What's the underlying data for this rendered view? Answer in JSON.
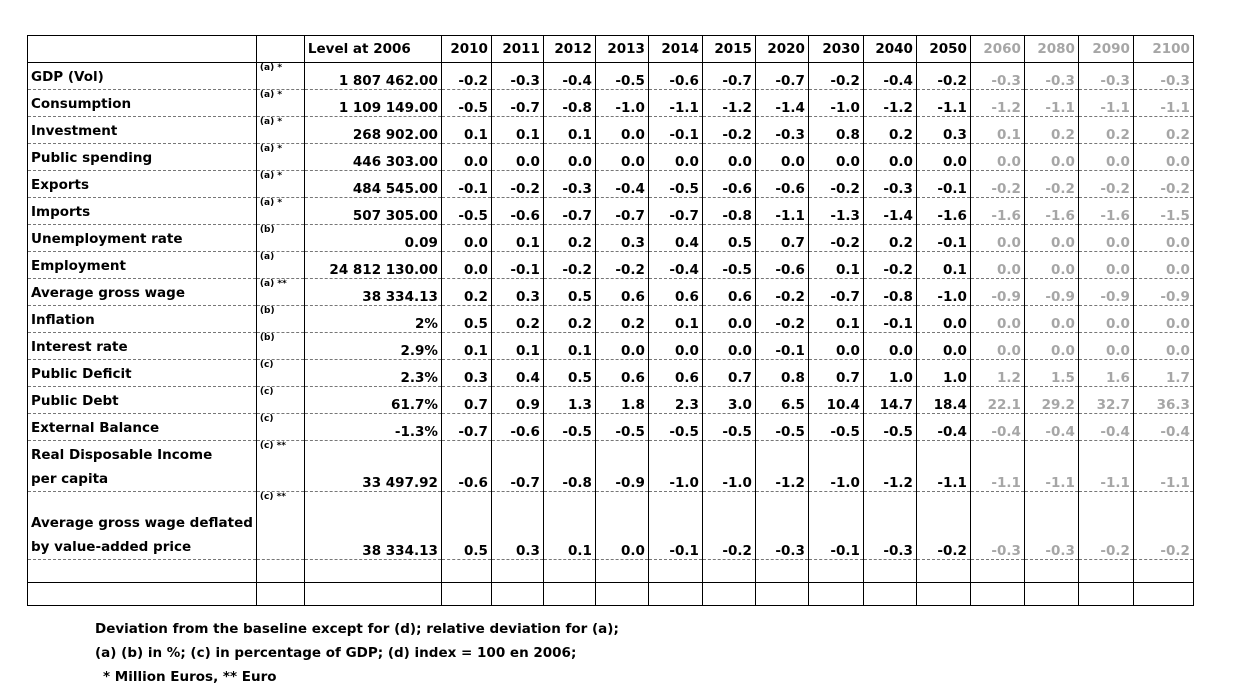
{
  "header": {
    "level_label": "Level at 2006",
    "years": [
      "2010",
      "2011",
      "2012",
      "2013",
      "2014",
      "2015",
      "2020",
      "2030",
      "2040",
      "2050",
      "2060",
      "2080",
      "2090",
      "2100"
    ],
    "grey_from_index": 10
  },
  "rows": [
    {
      "label": "GDP (Vol)",
      "note": "(a) *",
      "level": "1 807 462.00",
      "values": [
        "-0.2",
        "-0.3",
        "-0.4",
        "-0.5",
        "-0.6",
        "-0.7",
        "-0.7",
        "-0.2",
        "-0.4",
        "-0.2",
        "-0.3",
        "-0.3",
        "-0.3",
        "-0.3"
      ]
    },
    {
      "label": "Consumption",
      "note": "(a) *",
      "level": "1 109 149.00",
      "values": [
        "-0.5",
        "-0.7",
        "-0.8",
        "-1.0",
        "-1.1",
        "-1.2",
        "-1.4",
        "-1.0",
        "-1.2",
        "-1.1",
        "-1.2",
        "-1.1",
        "-1.1",
        "-1.1"
      ]
    },
    {
      "label": "Investment",
      "note": "(a) *",
      "level": "268 902.00",
      "values": [
        "0.1",
        "0.1",
        "0.1",
        "0.0",
        "-0.1",
        "-0.2",
        "-0.3",
        "0.8",
        "0.2",
        "0.3",
        "0.1",
        "0.2",
        "0.2",
        "0.2"
      ]
    },
    {
      "label": "Public spending",
      "note": "(a) *",
      "level": "446 303.00",
      "values": [
        "0.0",
        "0.0",
        "0.0",
        "0.0",
        "0.0",
        "0.0",
        "0.0",
        "0.0",
        "0.0",
        "0.0",
        "0.0",
        "0.0",
        "0.0",
        "0.0"
      ]
    },
    {
      "label": "Exports",
      "note": "(a) *",
      "level": "484 545.00",
      "values": [
        "-0.1",
        "-0.2",
        "-0.3",
        "-0.4",
        "-0.5",
        "-0.6",
        "-0.6",
        "-0.2",
        "-0.3",
        "-0.1",
        "-0.2",
        "-0.2",
        "-0.2",
        "-0.2"
      ]
    },
    {
      "label": "Imports",
      "note": "(a) *",
      "level": "507 305.00",
      "values": [
        "-0.5",
        "-0.6",
        "-0.7",
        "-0.7",
        "-0.7",
        "-0.8",
        "-1.1",
        "-1.3",
        "-1.4",
        "-1.6",
        "-1.6",
        "-1.6",
        "-1.6",
        "-1.5"
      ]
    },
    {
      "label": "Unemployment rate",
      "note": "(b)",
      "level": "0.09",
      "values": [
        "0.0",
        "0.1",
        "0.2",
        "0.3",
        "0.4",
        "0.5",
        "0.7",
        "-0.2",
        "0.2",
        "-0.1",
        "0.0",
        "0.0",
        "0.0",
        "0.0"
      ]
    },
    {
      "label": "Employment",
      "note": "(a)",
      "level": "24 812 130.00",
      "values": [
        "0.0",
        "-0.1",
        "-0.2",
        "-0.2",
        "-0.4",
        "-0.5",
        "-0.6",
        "0.1",
        "-0.2",
        "0.1",
        "0.0",
        "0.0",
        "0.0",
        "0.0"
      ]
    },
    {
      "label": "Average gross wage",
      "note": "(a) **",
      "level": "38 334.13",
      "values": [
        "0.2",
        "0.3",
        "0.5",
        "0.6",
        "0.6",
        "0.6",
        "-0.2",
        "-0.7",
        "-0.8",
        "-1.0",
        "-0.9",
        "-0.9",
        "-0.9",
        "-0.9"
      ]
    },
    {
      "label": "Inflation",
      "note": "(b)",
      "level": "2%",
      "values": [
        "0.5",
        "0.2",
        "0.2",
        "0.2",
        "0.1",
        "0.0",
        "-0.2",
        "0.1",
        "-0.1",
        "0.0",
        "0.0",
        "0.0",
        "0.0",
        "0.0"
      ]
    },
    {
      "label": "Interest rate",
      "note": "(b)",
      "level": "2.9%",
      "values": [
        "0.1",
        "0.1",
        "0.1",
        "0.0",
        "0.0",
        "0.0",
        "-0.1",
        "0.0",
        "0.0",
        "0.0",
        "0.0",
        "0.0",
        "0.0",
        "0.0"
      ]
    },
    {
      "label": "Public Deficit",
      "note": "(c)",
      "level": "2.3%",
      "values": [
        "0.3",
        "0.4",
        "0.5",
        "0.6",
        "0.6",
        "0.7",
        "0.8",
        "0.7",
        "1.0",
        "1.0",
        "1.2",
        "1.5",
        "1.6",
        "1.7"
      ]
    },
    {
      "label": "Public Debt",
      "note": "(c)",
      "level": "61.7%",
      "values": [
        "0.7",
        "0.9",
        "1.3",
        "1.8",
        "2.3",
        "3.0",
        "6.5",
        "10.4",
        "14.7",
        "18.4",
        "22.1",
        "29.2",
        "32.7",
        "36.3"
      ]
    },
    {
      "label": "External Balance",
      "note": "(c)",
      "level": "-1.3%",
      "values": [
        "-0.7",
        "-0.6",
        "-0.5",
        "-0.5",
        "-0.5",
        "-0.5",
        "-0.5",
        "-0.5",
        "-0.5",
        "-0.4",
        "-0.4",
        "-0.4",
        "-0.4",
        "-0.4"
      ]
    },
    {
      "label_lines": [
        "Real Disposable Income",
        "per capita"
      ],
      "note": "(c) **",
      "level": "33 497.92",
      "values": [
        "-0.6",
        "-0.7",
        "-0.8",
        "-0.9",
        "-1.0",
        "-1.0",
        "-1.2",
        "-1.0",
        "-1.2",
        "-1.1",
        "-1.1",
        "-1.1",
        "-1.1",
        "-1.1"
      ]
    },
    {
      "label_lines": [
        "Average gross wage deflated",
        "by value-added price"
      ],
      "note": "(c) **",
      "level": "38 334.13",
      "values": [
        "0.5",
        "0.3",
        "0.1",
        "0.0",
        "-0.1",
        "-0.2",
        "-0.3",
        "-0.1",
        "-0.3",
        "-0.2",
        "-0.3",
        "-0.3",
        "-0.2",
        "-0.2"
      ]
    }
  ],
  "footnotes": {
    "line1": "Deviation from the baseline except for (d); relative deviation for (a);",
    "line2": "(a) (b) in %; (c) in percentage of GDP; (d) index = 100 en 2006;",
    "line3": "* Million Euros, ** Euro"
  }
}
